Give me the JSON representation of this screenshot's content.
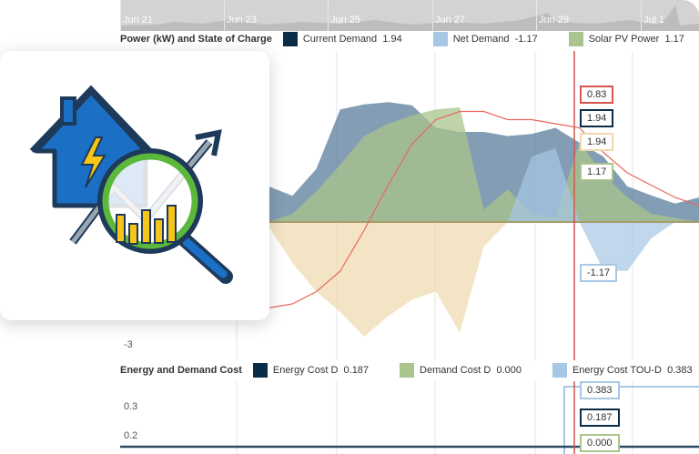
{
  "navigator": {
    "labels": [
      "Jun 21",
      "Jun 23",
      "Jun 25",
      "Jun 27",
      "Jun 29",
      "Jul 1"
    ]
  },
  "power": {
    "title": "Power (kW) and State of Charge",
    "legend": [
      {
        "label": "Current Demand",
        "value": "1.94",
        "color": "#0b2c47"
      },
      {
        "label": "Net Demand",
        "value": "-1.17",
        "color": "#a7c8e4"
      },
      {
        "label": "Solar PV Power",
        "value": "1.17",
        "color": "#a9c48c"
      }
    ],
    "y_label": "-3",
    "tooltips": [
      "0.83",
      "1.94",
      "1.94",
      "1.17",
      "-1.17"
    ]
  },
  "cost": {
    "title": "Energy and Demand Cost",
    "legend": [
      {
        "label": "Energy Cost D",
        "value": "0.187",
        "color": "#0b2c47"
      },
      {
        "label": "Demand Cost D",
        "value": "0.000",
        "color": "#a9c48c"
      },
      {
        "label": "Energy Cost TOU-D",
        "value": "0.383",
        "color": "#a7c8e4"
      }
    ],
    "y_ticks": [
      "0.3",
      "0.2"
    ],
    "tooltips": [
      "0.383",
      "0.187",
      "0.000"
    ]
  },
  "chart_data": {
    "type": "area",
    "ylim": [
      -3,
      4
    ],
    "series": [
      {
        "name": "Current Demand",
        "color": "#4f7394",
        "values": [
          0.87,
          0.64,
          1.3,
          2.75,
          2.87,
          2.93,
          2.85,
          2.3,
          2.2,
          2.2,
          2.1,
          2.15,
          2.3,
          1.94,
          1.6,
          0.87,
          0.65,
          0.45,
          0.6
        ]
      },
      {
        "name": "Solar PV Power",
        "color": "#a9c48c",
        "values": [
          0,
          0.2,
          0.75,
          1.4,
          2.1,
          2.4,
          2.6,
          2.75,
          2.8,
          0.3,
          0.8,
          0.2,
          0.1,
          1.94,
          1.17,
          0.6,
          0.2,
          0.1,
          0
        ]
      },
      {
        "name": "Net Demand",
        "color": "#a7c8e4",
        "values": [
          0,
          0,
          0,
          0,
          0,
          0,
          0,
          0,
          0,
          0,
          0,
          1.6,
          1.8,
          0,
          -1.17,
          -1.2,
          -0.4,
          0,
          0
        ]
      },
      {
        "color": "#f0d9ae",
        "values": [
          -0.1,
          -1,
          -1.7,
          -2.2,
          -2.8,
          -2.3,
          -1.9,
          -1.7,
          -2.7,
          -0.6,
          0,
          0,
          0,
          0,
          0,
          0,
          0,
          0,
          0
        ]
      }
    ],
    "state_of_charge": [
      -2.1,
      -2,
      -1.7,
      -1.2,
      -0.2,
      0.9,
      1.9,
      2.5,
      2.7,
      2.7,
      2.5,
      2.5,
      2.4,
      2.3,
      1.7,
      1.2,
      0.9,
      0.6,
      0.4
    ]
  }
}
